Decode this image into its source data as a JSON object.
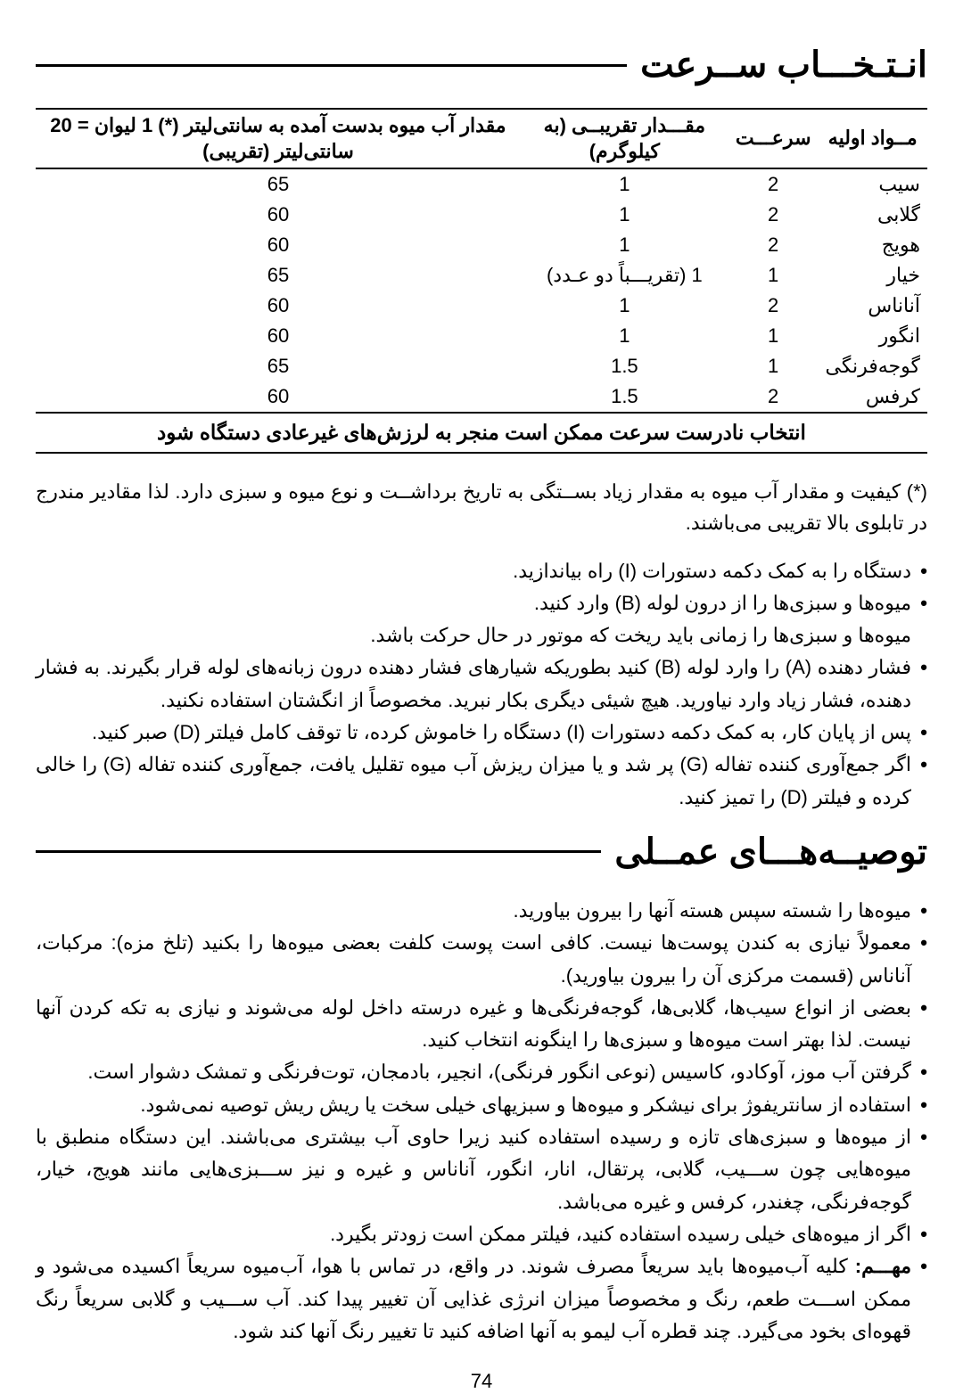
{
  "section1_title": "انـتـخـــاب ســرعت",
  "section2_title": "توصیــه‌هـــای عمــلی",
  "table": {
    "columns": [
      "مــواد اولیه",
      "سرعـــت",
      "مقـــدار تقریبــی (به کیلوگرم)",
      "مقدار آب میوه بدست آمده به سانتی‌لیتر (*) 1 لیوان = 20 سانتی‌لیتر (تقریبی)"
    ],
    "rows": [
      {
        "ingredient": "سیب",
        "speed": "2",
        "qty": "1",
        "juice": "65"
      },
      {
        "ingredient": "گلابی",
        "speed": "2",
        "qty": "1",
        "juice": "60"
      },
      {
        "ingredient": "هویج",
        "speed": "2",
        "qty": "1",
        "juice": "60"
      },
      {
        "ingredient": "خیار",
        "speed": "1",
        "qty": "1 (تقریـــباً دو عـدد)",
        "juice": "65"
      },
      {
        "ingredient": "آناناس",
        "speed": "2",
        "qty": "1",
        "juice": "60"
      },
      {
        "ingredient": "انگور",
        "speed": "1",
        "qty": "1",
        "juice": "60"
      },
      {
        "ingredient": "گوجه‌فرنگی",
        "speed": "1",
        "qty": "1.5",
        "juice": "65"
      },
      {
        "ingredient": "کرفس",
        "speed": "2",
        "qty": "1.5",
        "juice": "60"
      }
    ],
    "footer": "انتخاب نادرست سرعت ممکن است منجر به لرزش‌های غیرعادی دستگاه شود"
  },
  "table_note": "(*) کیفیت و مقدار آب میوه به مقدار زیاد بســتگی به تاریخ برداشــت و نوع میوه و سبزی دارد. لذا مقادیر مندرج در تابلوی بالا تقریبی می‌باشند.",
  "instructions": [
    {
      "type": "bullet",
      "text": "دستگاه را به کمک دکمه دستورات (I) راه بیاندازید."
    },
    {
      "type": "bullet",
      "text": "میوه‌ها و سبزی‌ها را از درون لوله (B) وارد کنید."
    },
    {
      "type": "plain",
      "text": "میوه‌ها و سبزی‌ها را زمانی باید ریخت که موتور در حال حرکت باشد."
    },
    {
      "type": "bullet",
      "text": "فشار دهنده (A) را وارد لوله (B) کنید بطوریکه شیارهای فشار دهنده درون زبانه‌های لوله قرار بگیرند. به فشار دهنده، فشار زیاد وارد نیاورید. هیچ شیئی دیگری بکار نبرید. مخصوصاً از انگشتان استفاده نکنید."
    },
    {
      "type": "bullet",
      "text": "پس از پایان کار، به کمک دکمه دستورات (I) دستگاه را خاموش کرده، تا توقف کامل فیلتر (D) صبر کنید."
    },
    {
      "type": "bullet",
      "text": "اگر جمع‌آوری کننده تفاله (G) پر شد و یا میزان ریزش آب میوه تقلیل یافت، جمع‌آوری کننده تفاله (G) را خالی کرده و فیلتر (D) را تمیز کنید."
    }
  ],
  "practical": [
    {
      "type": "bullet",
      "text": "میوه‌ها را شسته سپس هسته آنها را بیرون بیاورید."
    },
    {
      "type": "bullet",
      "text": "معمولاً نیازی به کندن پوست‌ها نیست. کافی است پوست کلفت بعضی میوه‌ها را بکنید (تلخ مزه): مرکبات، آناناس (قسمت مرکزی آن را بیرون بیاورید)."
    },
    {
      "type": "bullet",
      "text": "بعضی از انواع سیب‌ها، گلابی‌ها، گوجه‌فرنگی‌ها و غیره درسته داخل لوله می‌شوند و نیازی به تکه کردن آنها نیست. لذا بهتر است میوه‌ها و سبزی‌ها را اینگونه انتخاب کنید."
    },
    {
      "type": "bullet",
      "text": "گرفتن آب موز، آوکادو، کاسیس (نوعی انگور فرنگی)، انجیر، بادمجان، توت‌فرنگی و تمشک دشوار است."
    },
    {
      "type": "bullet",
      "text": "استفاده از سانتریفوژ برای نیشکر و میوه‌ها و سبزیهای خیلی سخت یا ریش ریش توصیه نمی‌شود."
    },
    {
      "type": "bullet",
      "text": "از میوه‌ها و سبزی‌های تازه و رسیده استفاده کنید زیرا حاوی آب بیشتری می‌باشند. این دستگاه منطبق با میوه‌هایی چون ســـیب، گلابی، پرتقال، انار، انگور، آناناس و غیره و نیز ســـبزی‌هایی مانند هویج، خیار، گوجه‌فرنگی، چغندر، کرفس و غیره می‌باشد."
    },
    {
      "type": "bullet",
      "text": "اگر از میوه‌های خیلی رسیده استفاده کنید، فیلتر ممکن است زودتر بگیرد."
    },
    {
      "type": "bullet",
      "html": "<span class=\"bold\">مهـــم:</span> کلیه آب‌میوه‌ها باید سریعاً مصرف شوند. در واقع، در تماس با هوا، آب‌میوه سریعاً اکسیده می‌شود و ممکن اســـت طعم، رنگ و مخصوصاً میزان انرژی غذایی آن تغییر پیدا کند. آب ســـیب و گلابی سریعاً رنگ قهوه‌ای بخود می‌گیرد. چند قطره آب لیمو به آنها اضافه کنید تا تغییر رنگ آنها کند شود."
    }
  ],
  "page_number": "74"
}
